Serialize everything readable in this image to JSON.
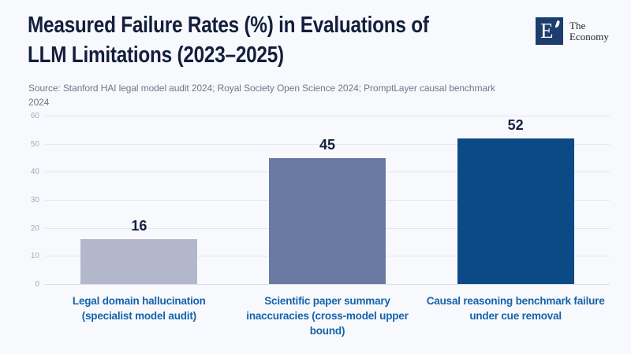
{
  "header": {
    "title_line1": "Measured Failure Rates (%) in Evaluations of",
    "title_line2": "LLM Limitations (2023–2025)",
    "source_line1": "Source: Stanford HAI legal model audit 2024; Royal Society Open Science 2024; PromptLayer causal benchmark",
    "source_line2": "2024"
  },
  "logo": {
    "monogram": "E",
    "name_line1": "The",
    "name_line2": "Economy",
    "square_color": "#1d3e6d"
  },
  "chart_data": {
    "type": "bar",
    "title": "Measured Failure Rates (%) in Evaluations of LLM Limitations (2023–2025)",
    "source": "Source: Stanford HAI legal model audit 2024; Royal Society Open Science 2024; PromptLayer causal benchmark 2024",
    "categories": [
      "Legal domain hallucination (specialist model audit)",
      "Scientific paper summary inaccuracies (cross-model upper bound)",
      "Causal reasoning benchmark failure under cue removal"
    ],
    "values": [
      16,
      45,
      52
    ],
    "bar_colors": [
      "#b3b7cc",
      "#6a7aa1",
      "#0c4a86"
    ],
    "value_label_color": "#152240",
    "xlabel": "",
    "ylabel": "",
    "ylim": [
      0,
      60
    ],
    "yticks": [
      0,
      10,
      20,
      30,
      40,
      50,
      60
    ],
    "grid": true,
    "legend": false,
    "value_labels_shown": true
  },
  "colors": {
    "background": "#f8f9fd",
    "title_text": "#131f3c",
    "source_text": "#73768a",
    "category_label": "#1563ab",
    "gridline": "#e4e6ef",
    "tick_label": "#a6abc1"
  }
}
